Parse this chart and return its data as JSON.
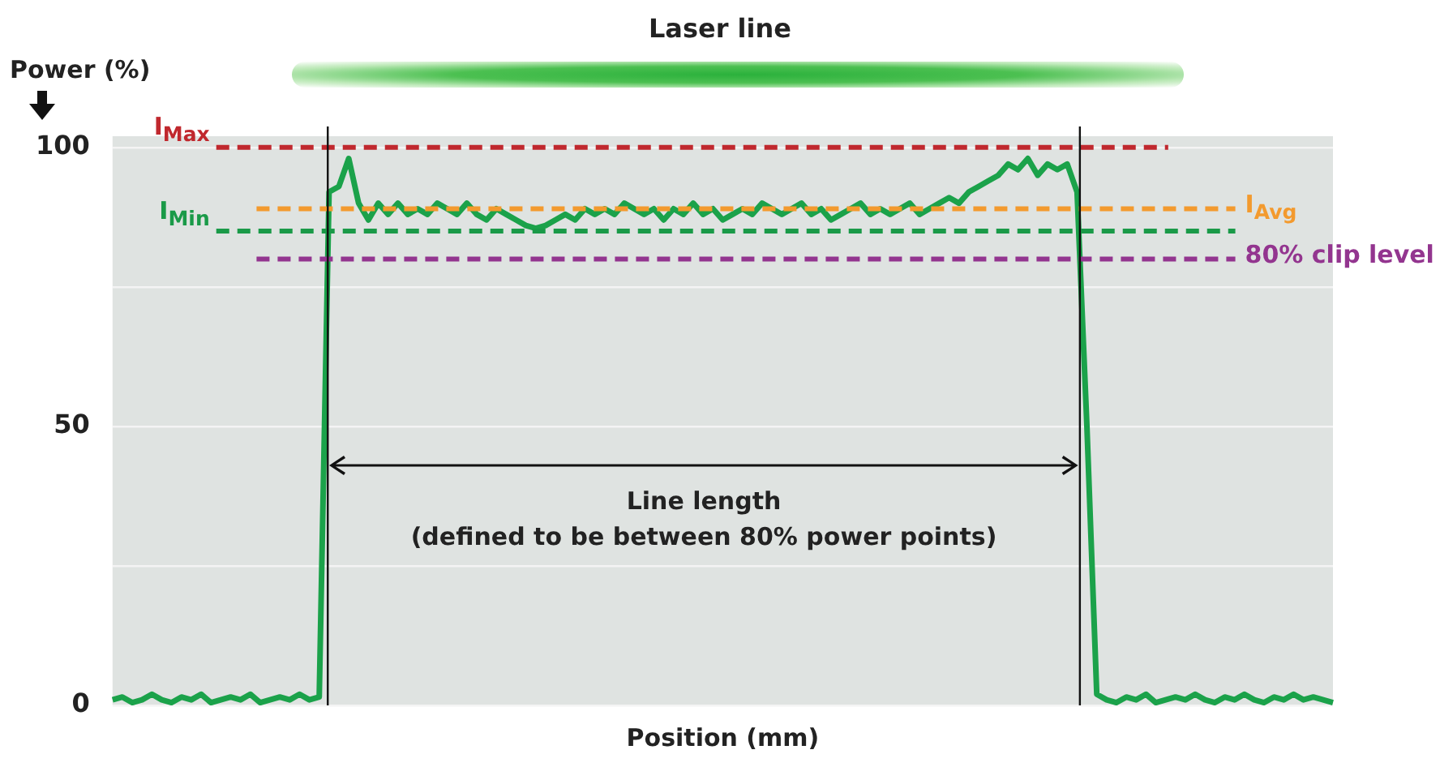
{
  "chart_data": {
    "type": "line",
    "title": "Laser line",
    "xlabel": "Position (mm)",
    "ylabel": "Power (%)",
    "categories": [
      null,
      null,
      null,
      null,
      null,
      null,
      null,
      null,
      null,
      null,
      null,
      null,
      null,
      null,
      null,
      null,
      null,
      null,
      null,
      null,
      null,
      null,
      null,
      null,
      null,
      null,
      null,
      null,
      null,
      null,
      null,
      null,
      null,
      null,
      null,
      null,
      null,
      null,
      null,
      null,
      null,
      null,
      null,
      null,
      null,
      null,
      null,
      null,
      null,
      null,
      null,
      null,
      null,
      null,
      null,
      null,
      null,
      null,
      null,
      null,
      null,
      null,
      null,
      null,
      null,
      null,
      null,
      null,
      null,
      null,
      null,
      null,
      null,
      null,
      null,
      null,
      null,
      null,
      null,
      null,
      null,
      null,
      null,
      null,
      null,
      null,
      null,
      null,
      null,
      null,
      null,
      null,
      null,
      null,
      null,
      null,
      null,
      null,
      null,
      null,
      null,
      null,
      null,
      null,
      null,
      null,
      null,
      null,
      null,
      null,
      null,
      null,
      null,
      null,
      null,
      null,
      null,
      null,
      null,
      null,
      null,
      null,
      null,
      null,
      null
    ],
    "series": [
      {
        "color": "#1ba24a",
        "values": [
          1,
          1.5,
          0.5,
          1,
          2,
          1,
          0.5,
          1.5,
          1,
          2,
          0.5,
          1,
          1.5,
          1,
          2,
          0.5,
          1,
          1.5,
          1,
          2,
          1,
          1.5,
          92,
          93,
          98,
          90,
          87,
          90,
          88,
          90,
          88,
          89,
          88,
          90,
          89,
          88,
          90,
          88,
          87,
          89,
          88,
          87,
          86,
          85.5,
          86,
          87,
          88,
          87,
          89,
          88,
          89,
          88,
          90,
          89,
          88,
          89,
          87,
          89,
          88,
          90,
          88,
          89,
          87,
          88,
          89,
          88,
          90,
          89,
          88,
          89,
          90,
          88,
          89,
          87,
          88,
          89,
          90,
          88,
          89,
          88,
          89,
          90,
          88,
          89,
          90,
          91,
          90,
          92,
          93,
          94,
          95,
          97,
          96,
          98,
          95,
          97,
          96,
          97,
          92,
          50,
          2,
          1,
          0.5,
          1.5,
          1,
          2,
          0.5,
          1,
          1.5,
          1,
          2,
          1,
          0.5,
          1.5,
          1,
          2,
          1,
          0.5,
          1.5,
          1,
          2,
          1,
          1.5,
          1,
          0.5
        ]
      }
    ],
    "ylim": [
      0,
      102
    ],
    "yticks": [
      0,
      {
        "value": 25,
        "label": null
      },
      50,
      {
        "value": 75,
        "label": null
      },
      100
    ],
    "tick_labels": "y",
    "grid": "y",
    "line_style": "solid",
    "marker": "none",
    "legend": false,
    "ref_lines": [
      {
        "axis": "y",
        "value": 100,
        "label": "I$_{Max}$",
        "color": "#c0282e",
        "line_style": "dashed"
      },
      {
        "axis": "y",
        "value": 89,
        "label": "I$_{Avg}$",
        "color": "#f39a2e",
        "line_style": "dashed"
      },
      {
        "axis": "y",
        "value": 85,
        "label": "I$_{Min}$",
        "color": "#1a9a48",
        "line_style": "dashed"
      },
      {
        "axis": "y",
        "value": 80,
        "label": "80% clip level",
        "color": "#93358f",
        "line_style": "dashed"
      }
    ],
    "annotations": [
      "Line length\n(defined to be between 80% power points)"
    ]
  }
}
